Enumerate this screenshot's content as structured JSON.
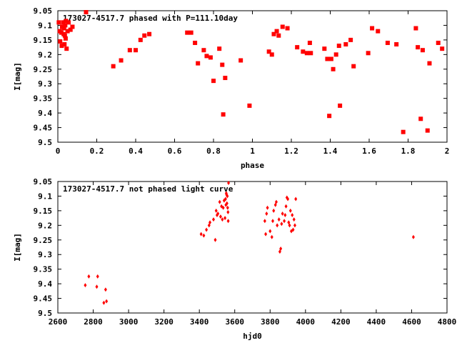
{
  "chart_data": [
    {
      "type": "scatter",
      "title": "173027-4517.7 phased with P=111.10day",
      "xlabel": "phase",
      "ylabel": "I[mag]",
      "xlim": [
        0,
        2
      ],
      "ylim": [
        9.5,
        9.05
      ],
      "y_inverted": true,
      "xticks": [
        0,
        0.2,
        0.4,
        0.6,
        0.8,
        1,
        1.2,
        1.4,
        1.6,
        1.8,
        2
      ],
      "xtick_labels": [
        "0",
        "0.2",
        "0.4",
        "0.6",
        "0.8",
        "1",
        "1.2",
        "1.4",
        "1.6",
        "1.8",
        "2"
      ],
      "yticks": [
        9.05,
        9.1,
        9.15,
        9.2,
        9.25,
        9.3,
        9.35,
        9.4,
        9.45,
        9.5
      ],
      "ytick_labels": [
        "9.05",
        "9.1",
        "9.15",
        "9.2",
        "9.25",
        "9.3",
        "9.35",
        "9.4",
        "9.45",
        "9.5"
      ],
      "marker_color": "#ff0000",
      "points": [
        [
          0.005,
          9.09
        ],
        [
          0.01,
          9.12
        ],
        [
          0.012,
          9.155
        ],
        [
          0.018,
          9.125
        ],
        [
          0.02,
          9.17
        ],
        [
          0.022,
          9.105
        ],
        [
          0.028,
          9.09
        ],
        [
          0.03,
          9.13
        ],
        [
          0.032,
          9.11
        ],
        [
          0.034,
          9.165
        ],
        [
          0.036,
          9.135
        ],
        [
          0.038,
          9.1
        ],
        [
          0.04,
          9.145
        ],
        [
          0.042,
          9.085
        ],
        [
          0.045,
          9.18
        ],
        [
          0.05,
          9.12
        ],
        [
          0.055,
          9.09
        ],
        [
          0.065,
          9.115
        ],
        [
          0.075,
          9.105
        ],
        [
          0.145,
          9.055
        ],
        [
          0.285,
          9.24
        ],
        [
          0.325,
          9.22
        ],
        [
          0.37,
          9.185
        ],
        [
          0.4,
          9.185
        ],
        [
          0.425,
          9.15
        ],
        [
          0.445,
          9.135
        ],
        [
          0.47,
          9.13
        ],
        [
          0.665,
          9.125
        ],
        [
          0.685,
          9.125
        ],
        [
          0.705,
          9.16
        ],
        [
          0.72,
          9.23
        ],
        [
          0.75,
          9.185
        ],
        [
          0.765,
          9.205
        ],
        [
          0.785,
          9.21
        ],
        [
          0.8,
          9.29
        ],
        [
          0.83,
          9.18
        ],
        [
          0.845,
          9.235
        ],
        [
          0.85,
          9.405
        ],
        [
          0.86,
          9.28
        ],
        [
          0.94,
          9.22
        ],
        [
          0.985,
          9.375
        ],
        [
          1.085,
          9.19
        ],
        [
          1.1,
          9.2
        ],
        [
          1.11,
          9.13
        ],
        [
          1.125,
          9.12
        ],
        [
          1.135,
          9.135
        ],
        [
          1.155,
          9.105
        ],
        [
          1.18,
          9.11
        ],
        [
          1.23,
          9.175
        ],
        [
          1.26,
          9.19
        ],
        [
          1.28,
          9.195
        ],
        [
          1.295,
          9.16
        ],
        [
          1.3,
          9.195
        ],
        [
          1.37,
          9.18
        ],
        [
          1.385,
          9.215
        ],
        [
          1.395,
          9.41
        ],
        [
          1.405,
          9.215
        ],
        [
          1.415,
          9.25
        ],
        [
          1.43,
          9.2
        ],
        [
          1.445,
          9.17
        ],
        [
          1.45,
          9.375
        ],
        [
          1.48,
          9.165
        ],
        [
          1.505,
          9.15
        ],
        [
          1.52,
          9.24
        ],
        [
          1.595,
          9.195
        ],
        [
          1.615,
          9.11
        ],
        [
          1.645,
          9.12
        ],
        [
          1.695,
          9.16
        ],
        [
          1.74,
          9.165
        ],
        [
          1.775,
          9.465
        ],
        [
          1.84,
          9.11
        ],
        [
          1.85,
          9.175
        ],
        [
          1.865,
          9.42
        ],
        [
          1.875,
          9.185
        ],
        [
          1.9,
          9.46
        ],
        [
          1.91,
          9.23
        ],
        [
          1.955,
          9.16
        ],
        [
          1.975,
          9.18
        ]
      ]
    },
    {
      "type": "scatter",
      "title": "173027-4517.7 not phased light curve",
      "xlabel": "hjd0",
      "ylabel": "I[mag]",
      "xlim": [
        2600,
        4800
      ],
      "ylim": [
        9.5,
        9.05
      ],
      "y_inverted": true,
      "xticks": [
        2600,
        2800,
        3000,
        3200,
        3400,
        3600,
        3800,
        4000,
        4200,
        4400,
        4600,
        4800
      ],
      "xtick_labels": [
        "2600",
        "2800",
        "3000",
        "3200",
        "3400",
        "3600",
        "3800",
        "4000",
        "4200",
        "4400",
        "4600",
        "4800"
      ],
      "yticks": [
        9.05,
        9.1,
        9.15,
        9.2,
        9.25,
        9.3,
        9.35,
        9.4,
        9.45,
        9.5
      ],
      "ytick_labels": [
        "9.05",
        "9.1",
        "9.15",
        "9.2",
        "9.25",
        "9.3",
        "9.35",
        "9.4",
        "9.45",
        "9.5"
      ],
      "marker_color": "#ff0000",
      "points": [
        [
          2755,
          9.405
        ],
        [
          2775,
          9.375
        ],
        [
          2820,
          9.41
        ],
        [
          2825,
          9.375
        ],
        [
          2860,
          9.465
        ],
        [
          2870,
          9.42
        ],
        [
          2875,
          9.46
        ],
        [
          3410,
          9.23
        ],
        [
          3425,
          9.235
        ],
        [
          3440,
          9.215
        ],
        [
          3455,
          9.2
        ],
        [
          3460,
          9.19
        ],
        [
          3480,
          9.18
        ],
        [
          3490,
          9.25
        ],
        [
          3495,
          9.15
        ],
        [
          3500,
          9.165
        ],
        [
          3505,
          9.16
        ],
        [
          3515,
          9.12
        ],
        [
          3520,
          9.17
        ],
        [
          3525,
          9.135
        ],
        [
          3530,
          9.18
        ],
        [
          3535,
          9.14
        ],
        [
          3540,
          9.115
        ],
        [
          3545,
          9.175
        ],
        [
          3548,
          9.11
        ],
        [
          3550,
          9.13
        ],
        [
          3552,
          9.09
        ],
        [
          3554,
          9.095
        ],
        [
          3556,
          9.125
        ],
        [
          3558,
          9.1
        ],
        [
          3560,
          9.14
        ],
        [
          3562,
          9.155
        ],
        [
          3563,
          9.185
        ],
        [
          3565,
          9.055
        ],
        [
          3770,
          9.185
        ],
        [
          3775,
          9.23
        ],
        [
          3780,
          9.16
        ],
        [
          3785,
          9.14
        ],
        [
          3800,
          9.22
        ],
        [
          3810,
          9.24
        ],
        [
          3815,
          9.185
        ],
        [
          3820,
          9.15
        ],
        [
          3830,
          9.13
        ],
        [
          3835,
          9.12
        ],
        [
          3840,
          9.2
        ],
        [
          3850,
          9.18
        ],
        [
          3855,
          9.29
        ],
        [
          3860,
          9.28
        ],
        [
          3865,
          9.195
        ],
        [
          3870,
          9.16
        ],
        [
          3880,
          9.185
        ],
        [
          3885,
          9.165
        ],
        [
          3890,
          9.135
        ],
        [
          3895,
          9.105
        ],
        [
          3900,
          9.11
        ],
        [
          3905,
          9.19
        ],
        [
          3910,
          9.2
        ],
        [
          3915,
          9.15
        ],
        [
          3920,
          9.22
        ],
        [
          3925,
          9.165
        ],
        [
          3930,
          9.215
        ],
        [
          3935,
          9.18
        ],
        [
          3940,
          9.2
        ],
        [
          3945,
          9.11
        ],
        [
          4610,
          9.24
        ]
      ]
    }
  ]
}
